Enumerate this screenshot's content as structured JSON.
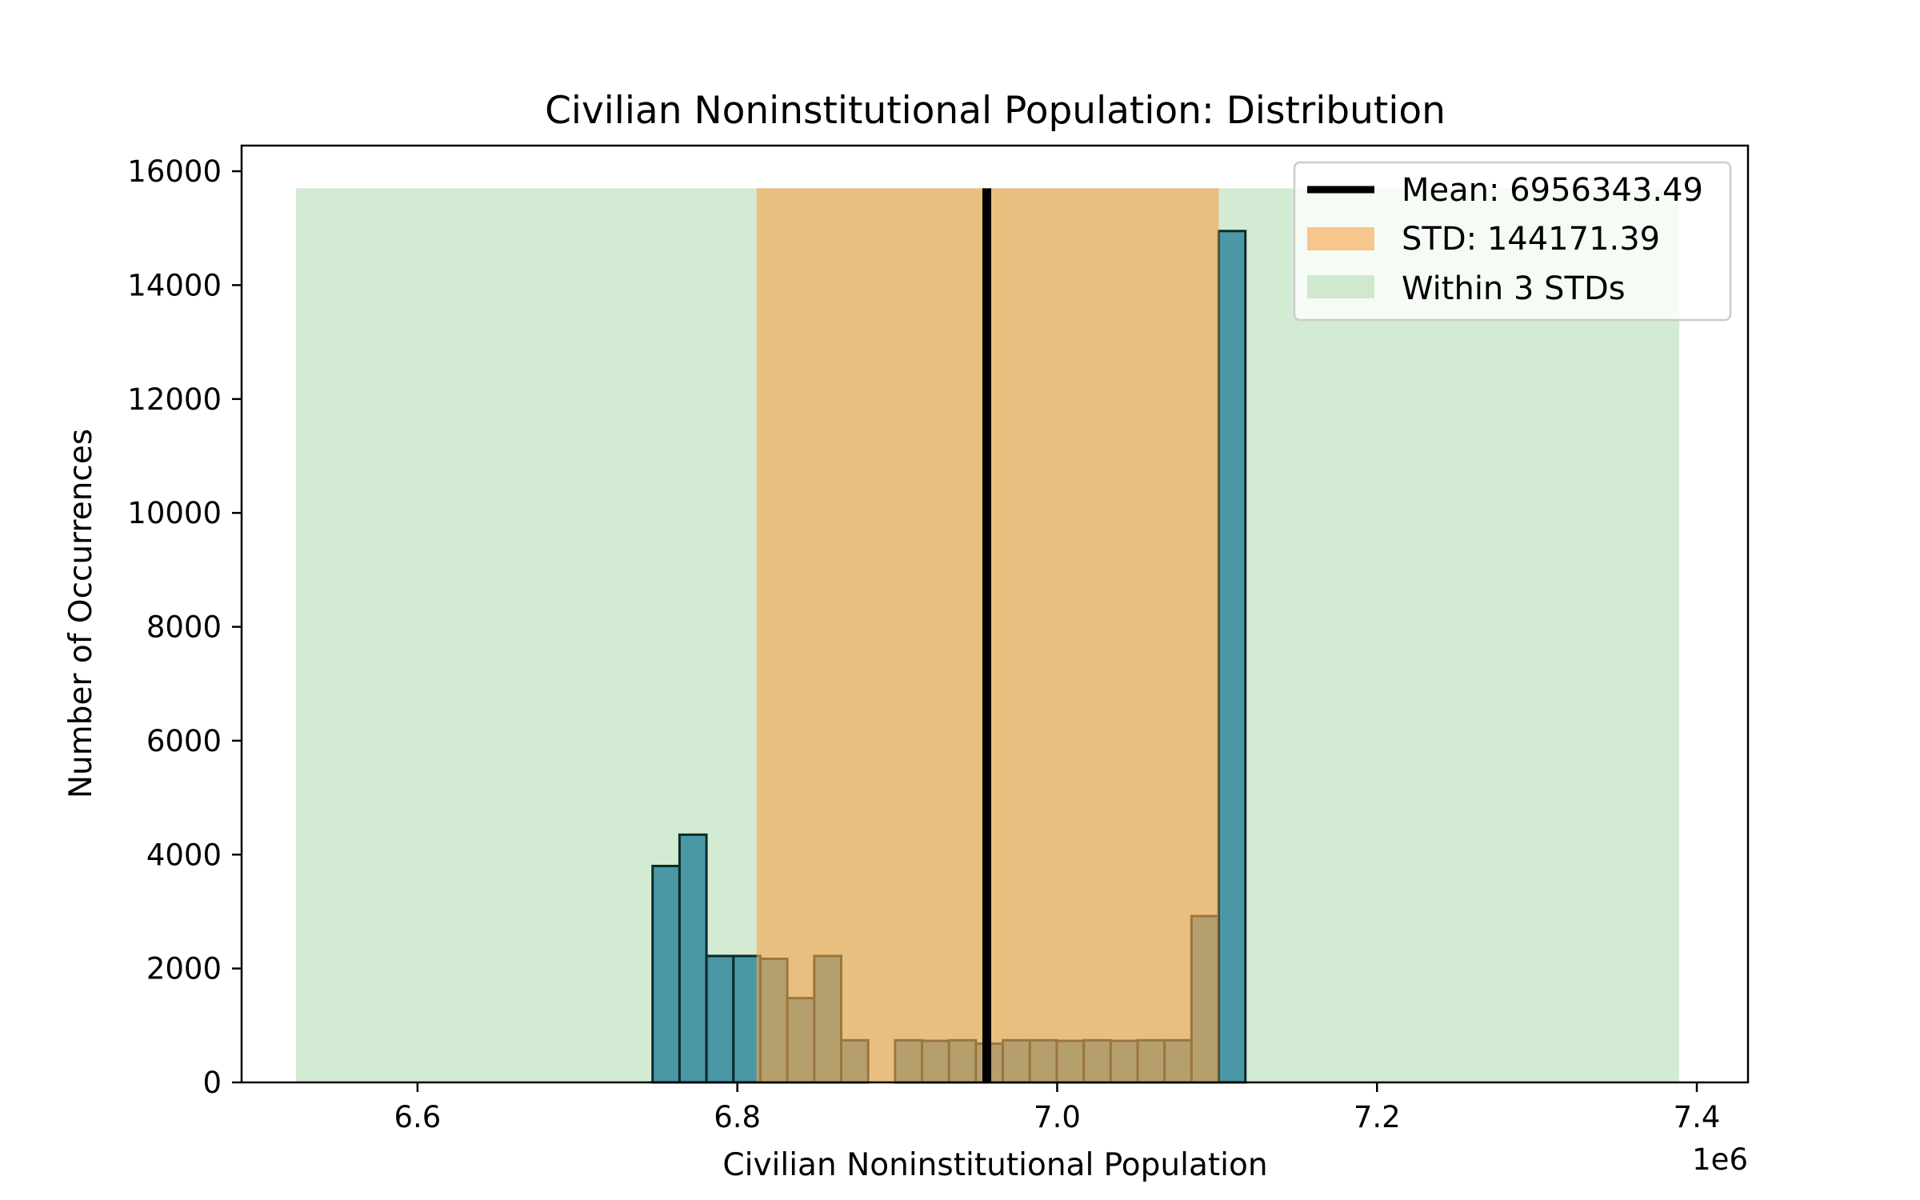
{
  "chart_data": {
    "type": "bar",
    "title": "Civilian Noninstitutional Population: Distribution",
    "xlabel": "Civilian Noninstitutional Population",
    "ylabel": "Number of Occurrences",
    "x_offset_label": "1e6",
    "xlim": [
      6.49,
      7.432
    ],
    "ylim": [
      0,
      16450
    ],
    "x_ticks": [
      6.6,
      6.8,
      7.0,
      7.2,
      7.4
    ],
    "x_tick_labels": [
      "6.6",
      "6.8",
      "7.0",
      "7.2",
      "7.4"
    ],
    "y_ticks": [
      0,
      2000,
      4000,
      6000,
      8000,
      10000,
      12000,
      14000,
      16000
    ],
    "y_tick_labels": [
      "0",
      "2000",
      "4000",
      "6000",
      "8000",
      "10000",
      "12000",
      "14000",
      "16000"
    ],
    "grid": false,
    "legend_position": "top-right",
    "histogram": {
      "bin_start": 6.747,
      "bin_width": 0.01685,
      "counts": [
        3800,
        4350,
        2220,
        2220,
        2170,
        1480,
        2220,
        740,
        0,
        740,
        730,
        740,
        680,
        740,
        740,
        730,
        740,
        730,
        740,
        740,
        2920,
        14950
      ],
      "color": "#4a97a6",
      "edge_color": "#0a2a2a"
    },
    "mean": {
      "value": 6.956,
      "label": "Mean: 6956343.49",
      "color": "#000000"
    },
    "std": {
      "low": 6.812,
      "high": 7.101,
      "label": "STD: 144171.39",
      "color": "#f5a54a"
    },
    "three_std": {
      "low": 6.524,
      "high": 7.389,
      "label": "Within 3 STDs",
      "color": "#a8d8a8"
    },
    "band_top": 15700
  }
}
